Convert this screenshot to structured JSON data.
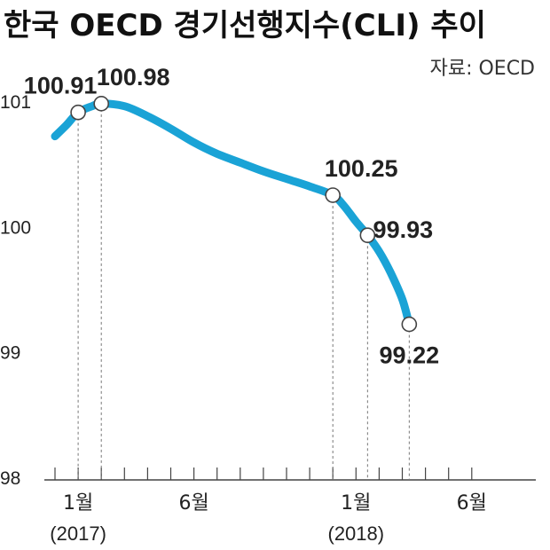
{
  "chart_data": {
    "type": "line",
    "title": "한국 OECD 경기선행지수(CLI) 추이",
    "source": "자료: OECD",
    "xlabel": "",
    "ylabel": "",
    "ylim": [
      98,
      101
    ],
    "yticks": [
      98,
      99,
      100,
      101
    ],
    "months_range": [
      0,
      18
    ],
    "x_tick_labels": [
      {
        "month": 1,
        "label": "1월",
        "sublabel": "(2017)"
      },
      {
        "month": 6,
        "label": "6월",
        "sublabel": ""
      },
      {
        "month": 13,
        "label": "1월",
        "sublabel": "(2018)"
      },
      {
        "month": 18,
        "label": "6월",
        "sublabel": ""
      }
    ],
    "series": [
      {
        "color": "#1aa3d6",
        "points": [
          {
            "month": 0,
            "value": 100.72
          },
          {
            "month": 0.5,
            "value": 100.81
          },
          {
            "month": 1,
            "value": 100.91
          },
          {
            "month": 1.6,
            "value": 100.96
          },
          {
            "month": 2,
            "value": 100.98
          },
          {
            "month": 3,
            "value": 100.96
          },
          {
            "month": 4,
            "value": 100.88
          },
          {
            "month": 5,
            "value": 100.78
          },
          {
            "month": 6,
            "value": 100.67
          },
          {
            "month": 7,
            "value": 100.58
          },
          {
            "month": 8,
            "value": 100.51
          },
          {
            "month": 9,
            "value": 100.44
          },
          {
            "month": 10,
            "value": 100.38
          },
          {
            "month": 11,
            "value": 100.32
          },
          {
            "month": 12,
            "value": 100.25
          },
          {
            "month": 12.5,
            "value": 100.16
          },
          {
            "month": 13,
            "value": 100.04
          },
          {
            "month": 13.5,
            "value": 99.93
          },
          {
            "month": 14,
            "value": 99.8
          },
          {
            "month": 14.5,
            "value": 99.63
          },
          {
            "month": 15,
            "value": 99.42
          },
          {
            "month": 15.3,
            "value": 99.22
          }
        ]
      }
    ],
    "labeled_points": [
      {
        "month": 1,
        "value": 100.91,
        "label": "100.91"
      },
      {
        "month": 2,
        "value": 100.98,
        "label": "100.98"
      },
      {
        "month": 12,
        "value": 100.25,
        "label": "100.25"
      },
      {
        "month": 13.5,
        "value": 99.93,
        "label": "99.93"
      },
      {
        "month": 15.3,
        "value": 99.22,
        "label": "99.22"
      }
    ]
  }
}
